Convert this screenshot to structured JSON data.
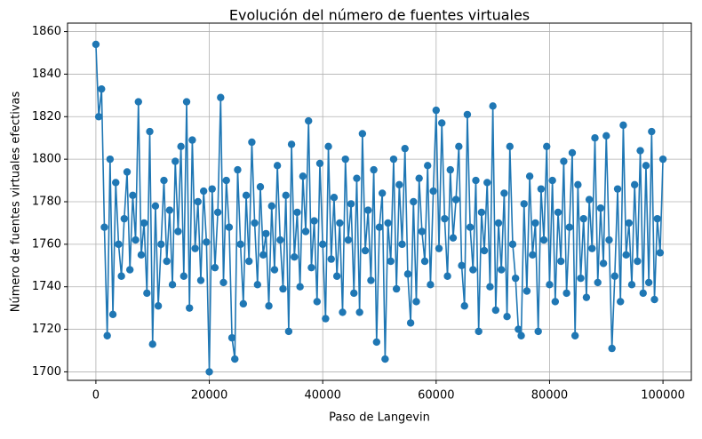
{
  "chart_data": {
    "type": "line",
    "title": "Evolución del número de fuentes virtuales",
    "x_label": "Paso de Langevin",
    "y_label": "Número de fuentes virtuales efectivas",
    "color": "#1f77b4",
    "marker": true,
    "grid": true,
    "xlim": [
      -5000,
      105000
    ],
    "ylim": [
      1696,
      1864
    ],
    "xticks": [
      0,
      20000,
      40000,
      60000,
      80000,
      100000
    ],
    "yticks": [
      1700,
      1720,
      1740,
      1760,
      1780,
      1800,
      1820,
      1840,
      1860
    ],
    "x": [
      0,
      500,
      1000,
      1500,
      2000,
      2500,
      3000,
      3500,
      4000,
      4500,
      5000,
      5500,
      6000,
      6500,
      7000,
      7500,
      8000,
      8500,
      9000,
      9500,
      10000,
      10500,
      11000,
      11500,
      12000,
      12500,
      13000,
      13500,
      14000,
      14500,
      15000,
      15500,
      16000,
      16500,
      17000,
      17500,
      18000,
      18500,
      19000,
      19500,
      20000,
      20500,
      21000,
      21500,
      22000,
      22500,
      23000,
      23500,
      24000,
      24500,
      25000,
      25500,
      26000,
      26500,
      27000,
      27500,
      28000,
      28500,
      29000,
      29500,
      30000,
      30500,
      31000,
      31500,
      32000,
      32500,
      33000,
      33500,
      34000,
      34500,
      35000,
      35500,
      36000,
      36500,
      37000,
      37500,
      38000,
      38500,
      39000,
      39500,
      40000,
      40500,
      41000,
      41500,
      42000,
      42500,
      43000,
      43500,
      44000,
      44500,
      45000,
      45500,
      46000,
      46500,
      47000,
      47500,
      48000,
      48500,
      49000,
      49500,
      50000,
      50500,
      51000,
      51500,
      52000,
      52500,
      53000,
      53500,
      54000,
      54500,
      55000,
      55500,
      56000,
      56500,
      57000,
      57500,
      58000,
      58500,
      59000,
      59500,
      60000,
      60500,
      61000,
      61500,
      62000,
      62500,
      63000,
      63500,
      64000,
      64500,
      65000,
      65500,
      66000,
      66500,
      67000,
      67500,
      68000,
      68500,
      69000,
      69500,
      70000,
      70500,
      71000,
      71500,
      72000,
      72500,
      73000,
      73500,
      74000,
      74500,
      75000,
      75500,
      76000,
      76500,
      77000,
      77500,
      78000,
      78500,
      79000,
      79500,
      80000,
      80500,
      81000,
      81500,
      82000,
      82500,
      83000,
      83500,
      84000,
      84500,
      85000,
      85500,
      86000,
      86500,
      87000,
      87500,
      88000,
      88500,
      89000,
      89500,
      90000,
      90500,
      91000,
      91500,
      92000,
      92500,
      93000,
      93500,
      94000,
      94500,
      95000,
      95500,
      96000,
      96500,
      97000,
      97500,
      98000,
      98500,
      99000,
      99500,
      100000
    ],
    "values": [
      1854,
      1820,
      1833,
      1768,
      1717,
      1800,
      1727,
      1789,
      1760,
      1745,
      1772,
      1794,
      1748,
      1783,
      1762,
      1827,
      1755,
      1770,
      1737,
      1813,
      1713,
      1778,
      1731,
      1760,
      1790,
      1752,
      1776,
      1741,
      1799,
      1766,
      1806,
      1745,
      1827,
      1730,
      1809,
      1758,
      1780,
      1743,
      1785,
      1761,
      1700,
      1786,
      1749,
      1775,
      1829,
      1742,
      1790,
      1768,
      1716,
      1706,
      1795,
      1760,
      1732,
      1783,
      1752,
      1808,
      1770,
      1741,
      1787,
      1755,
      1765,
      1731,
      1778,
      1748,
      1797,
      1762,
      1739,
      1783,
      1719,
      1807,
      1754,
      1775,
      1740,
      1792,
      1766,
      1818,
      1749,
      1771,
      1733,
      1798,
      1760,
      1725,
      1806,
      1753,
      1782,
      1745,
      1770,
      1728,
      1800,
      1762,
      1779,
      1737,
      1791,
      1728,
      1812,
      1757,
      1776,
      1743,
      1795,
      1714,
      1768,
      1784,
      1706,
      1770,
      1752,
      1800,
      1739,
      1788,
      1760,
      1805,
      1746,
      1723,
      1780,
      1733,
      1791,
      1766,
      1752,
      1797,
      1741,
      1785,
      1823,
      1758,
      1817,
      1772,
      1745,
      1795,
      1763,
      1781,
      1806,
      1750,
      1731,
      1821,
      1768,
      1748,
      1790,
      1719,
      1775,
      1757,
      1789,
      1740,
      1825,
      1729,
      1770,
      1748,
      1784,
      1726,
      1806,
      1760,
      1744,
      1720,
      1717,
      1779,
      1738,
      1792,
      1755,
      1770,
      1719,
      1786,
      1762,
      1806,
      1741,
      1790,
      1733,
      1775,
      1752,
      1799,
      1737,
      1768,
      1803,
      1717,
      1788,
      1744,
      1772,
      1735,
      1781,
      1758,
      1810,
      1742,
      1777,
      1751,
      1811,
      1762,
      1711,
      1745,
      1786,
      1733,
      1816,
      1755,
      1770,
      1741,
      1788,
      1752,
      1804,
      1737,
      1797,
      1742,
      1813,
      1734,
      1772,
      1756,
      1800
    ]
  }
}
